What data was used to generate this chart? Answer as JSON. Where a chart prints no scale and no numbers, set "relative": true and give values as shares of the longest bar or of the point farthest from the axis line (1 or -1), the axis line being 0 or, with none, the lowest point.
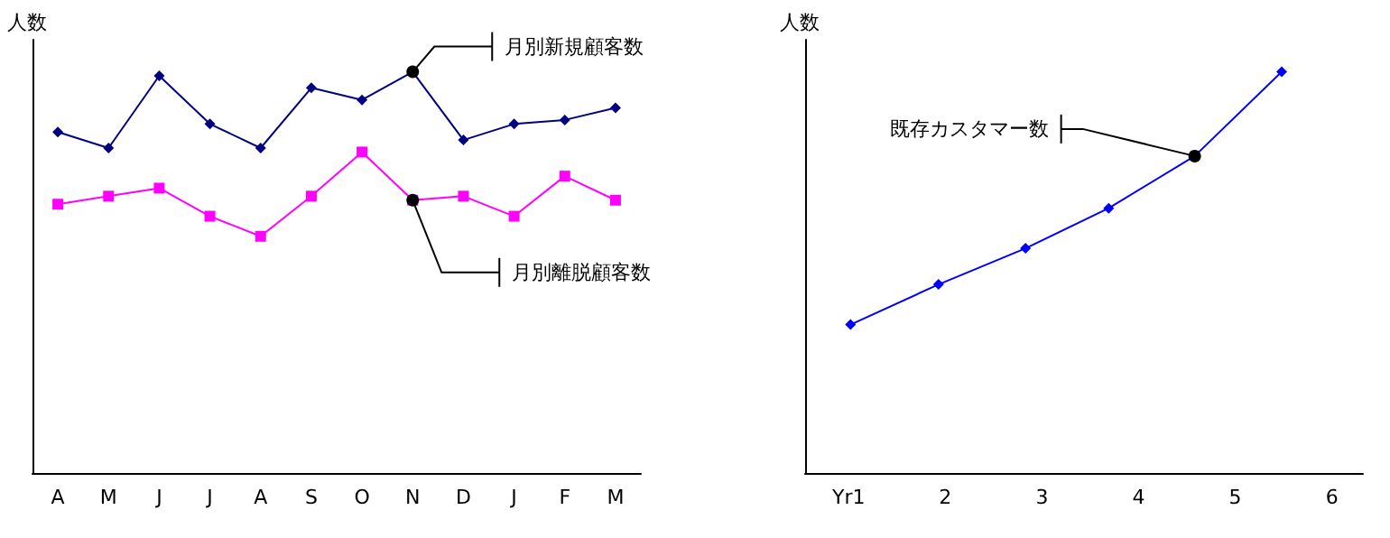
{
  "chart_data": [
    {
      "type": "line",
      "relative": true,
      "ylabel": "人数",
      "categories": [
        "A",
        "M",
        "J",
        "J",
        "A",
        "S",
        "O",
        "N",
        "D",
        "J",
        "F",
        "M"
      ],
      "grid": false,
      "series": [
        {
          "color": "#000080",
          "marker": "diamond",
          "values": [
            0.85,
            0.81,
            0.99,
            0.87,
            0.81,
            0.96,
            0.93,
            1,
            0.83,
            0.87,
            0.88,
            0.91
          ]
        },
        {
          "color": "#ff00ff",
          "marker": "square",
          "values": [
            0.67,
            0.69,
            0.71,
            0.64,
            0.59,
            0.69,
            0.8,
            0.68,
            0.69,
            0.64,
            0.74,
            0.68
          ]
        }
      ],
      "annotations": [
        {
          "text": "月別新規顧客数",
          "x": "N",
          "y": 1
        },
        {
          "text": "月別離脱顧客数",
          "x": "N",
          "y": 0.68
        }
      ]
    },
    {
      "type": "line",
      "relative": true,
      "ylabel": "人数",
      "grid": false,
      "xlim": [
        0.55,
        6.32
      ],
      "xticks": [
        {
          "value": 1,
          "label": "Yr1"
        },
        2,
        3,
        4,
        5,
        6
      ],
      "series": [
        {
          "color": "#0000ff",
          "marker": "diamond",
          "x": [
            1.02,
            1.93,
            2.83,
            3.69,
            4.58,
            5.48
          ],
          "values": [
            0.37,
            0.47,
            0.56,
            0.66,
            0.79,
            1
          ]
        }
      ],
      "annotations": [
        {
          "text": "既存カスタマー数",
          "x": 4.58,
          "y": 0.79
        }
      ]
    }
  ]
}
